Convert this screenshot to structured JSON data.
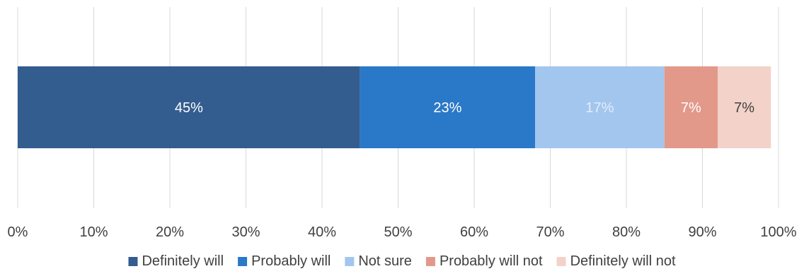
{
  "chart_data": {
    "type": "bar",
    "orientation": "horizontal",
    "stacked": true,
    "series": [
      {
        "name": "Definitely will",
        "value": 45,
        "label": "45%",
        "color": "#335c8f",
        "label_color": "#ffffff"
      },
      {
        "name": "Probably will",
        "value": 23,
        "label": "23%",
        "color": "#2a78c8",
        "label_color": "#ffffff"
      },
      {
        "name": "Not sure",
        "value": 17,
        "label": "17%",
        "color": "#a3c6ee",
        "label_color": "#e3eefa"
      },
      {
        "name": "Probably will not",
        "value": 7,
        "label": "7%",
        "color": "#e2998a",
        "label_color": "#ffffff"
      },
      {
        "name": "Definitely will not",
        "value": 7,
        "label": "7%",
        "color": "#f2d2c9",
        "label_color": "#404040"
      }
    ],
    "x_ticks": [
      "0%",
      "10%",
      "20%",
      "30%",
      "40%",
      "50%",
      "60%",
      "70%",
      "80%",
      "90%",
      "100%"
    ],
    "xlim": [
      0,
      100
    ],
    "grid": true,
    "legend_position": "bottom",
    "title": "",
    "xlabel": "",
    "ylabel": ""
  }
}
